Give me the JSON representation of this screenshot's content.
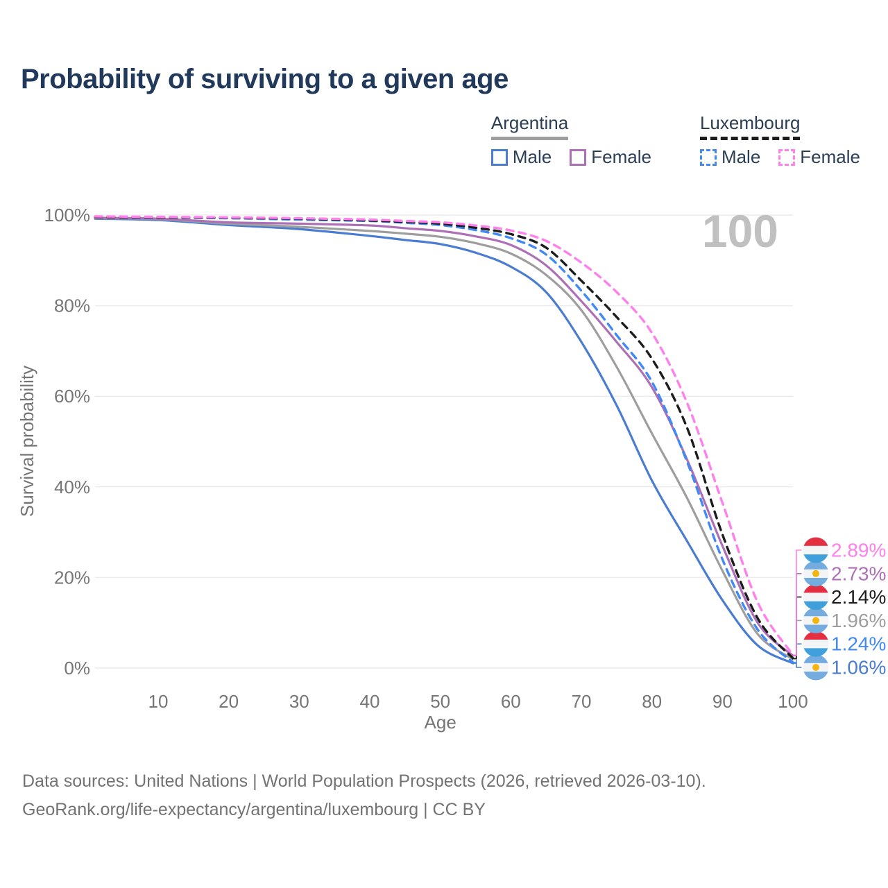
{
  "title": "Probability of surviving to a given age",
  "watermark_age": "100",
  "legend": {
    "groups": [
      {
        "label": "Argentina",
        "underline_color": "#9e9e9e",
        "underline_dashed": false,
        "items": [
          {
            "label": "Male",
            "color": "#4a7cd2",
            "dashed": false
          },
          {
            "label": "Female",
            "color": "#ad6fb5",
            "dashed": false
          }
        ]
      },
      {
        "label": "Luxembourg",
        "underline_color": "#1c1c1c",
        "underline_dashed": true,
        "items": [
          {
            "label": "Male",
            "color": "#4189f5",
            "dashed": true
          },
          {
            "label": "Female",
            "color": "#ff80ea",
            "dashed": true
          }
        ]
      }
    ]
  },
  "chart_data": {
    "type": "line",
    "title": "Probability of surviving to a given age",
    "xlabel": "Age",
    "ylabel": "Survival probability",
    "xlim": [
      0,
      100
    ],
    "ylim": [
      0,
      100
    ],
    "grid": "horizontal-only",
    "x_ticks": [
      10,
      20,
      30,
      40,
      50,
      60,
      70,
      80,
      90,
      100
    ],
    "y_ticks": [
      0,
      20,
      40,
      60,
      80,
      100
    ],
    "y_tick_suffix": "%",
    "x": [
      0,
      10,
      20,
      30,
      40,
      45,
      50,
      55,
      60,
      65,
      70,
      75,
      80,
      85,
      90,
      95,
      100
    ],
    "series": [
      {
        "name": "Argentina Male",
        "country": "argentina",
        "color": "#4a7cd2",
        "dashed": false,
        "end_label": "1.06%",
        "values": [
          99.2,
          98.9,
          97.8,
          96.9,
          95.4,
          94.5,
          93.6,
          91.7,
          88.6,
          83.0,
          72.0,
          58.0,
          41.4,
          28.0,
          15.0,
          5.0,
          1.06
        ]
      },
      {
        "name": "Argentina Both sexes",
        "country": "argentina",
        "color": "#9e9e9e",
        "dashed": false,
        "end_label": "1.96%",
        "values": [
          99.3,
          99.1,
          98.1,
          97.4,
          96.5,
          95.9,
          95.2,
          93.8,
          91.5,
          86.8,
          79.0,
          66.5,
          51.8,
          37.5,
          21.5,
          7.5,
          1.96
        ]
      },
      {
        "name": "Argentina Female",
        "country": "argentina",
        "color": "#ad6fb5",
        "dashed": false,
        "end_label": "2.73%",
        "values": [
          99.4,
          99.2,
          98.4,
          98.1,
          97.7,
          97.1,
          96.5,
          95.3,
          93.4,
          88.9,
          81.0,
          72.0,
          62.0,
          46.0,
          27.0,
          10.0,
          2.73
        ]
      },
      {
        "name": "Luxembourg Male",
        "country": "luxembourg",
        "color": "#4189f5",
        "dashed": true,
        "end_label": "1.24%",
        "values": [
          99.6,
          99.5,
          99.3,
          99.0,
          98.7,
          98.3,
          97.8,
          96.7,
          94.9,
          91.3,
          83.3,
          73.5,
          63.2,
          45.5,
          24.0,
          8.5,
          1.24
        ]
      },
      {
        "name": "Luxembourg Both sexes",
        "country": "luxembourg",
        "color": "#1c1c1c",
        "dashed": true,
        "end_label": "2.14%",
        "values": [
          99.6,
          99.5,
          99.4,
          99.2,
          98.8,
          98.5,
          98.1,
          97.2,
          95.8,
          92.8,
          85.5,
          77.5,
          68.3,
          53.0,
          29.5,
          11.0,
          2.14
        ]
      },
      {
        "name": "Luxembourg Female",
        "country": "luxembourg",
        "color": "#ff80ea",
        "dashed": true,
        "end_label": "2.89%",
        "values": [
          99.7,
          99.6,
          99.5,
          99.3,
          99.0,
          98.7,
          98.4,
          97.7,
          96.6,
          94.3,
          89.5,
          83.0,
          74.0,
          58.5,
          36.5,
          14.5,
          2.89
        ]
      }
    ],
    "flag_colors": {
      "argentina": {
        "stripe": "#74acdf",
        "middle": "#f2f4f6",
        "sun": "#f6b40e"
      },
      "luxembourg": {
        "top": "#e42f42",
        "middle": "#f2f4f6",
        "bottom": "#3fa0db"
      }
    }
  },
  "footer": {
    "line1": "Data sources: United Nations | World Population Prospects (2026, retrieved 2026-03-10).",
    "line2": "GeoRank.org/life-expectancy/argentina/luxembourg | CC BY"
  }
}
